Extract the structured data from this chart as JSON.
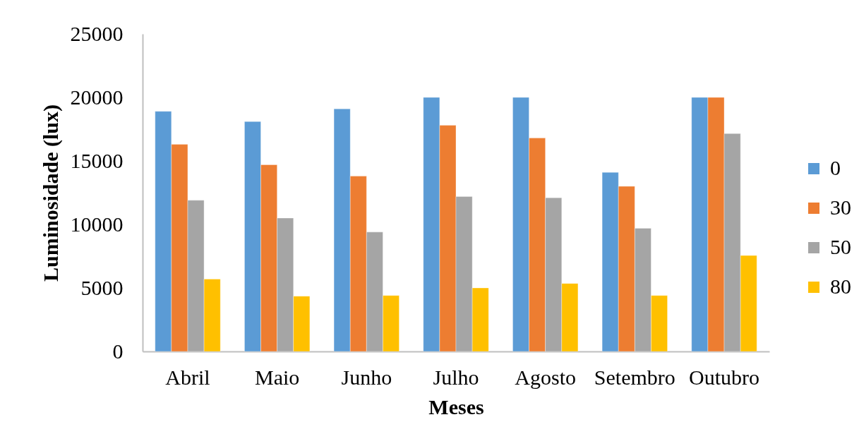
{
  "chart_data": {
    "type": "bar",
    "categories": [
      "Abril",
      "Maio",
      "Junho",
      "Julho",
      "Agosto",
      "Setembro",
      "Outubro"
    ],
    "xlabel": "Meses",
    "ylabel": "Luminosidade (lux)",
    "ylim": [
      0,
      25000
    ],
    "yticks": [
      0,
      5000,
      10000,
      15000,
      20000,
      25000
    ],
    "legend": "right",
    "series": [
      {
        "name": "0",
        "color": "#5b9bd5",
        "values": [
          18900,
          18100,
          19100,
          20000,
          20000,
          14100,
          20000
        ]
      },
      {
        "name": "30",
        "color": "#ed7d31",
        "values": [
          16300,
          14700,
          13800,
          17800,
          16800,
          13000,
          20000
        ]
      },
      {
        "name": "50",
        "color": "#a5a5a5",
        "values": [
          11900,
          10500,
          9400,
          12200,
          12100,
          9700,
          17150
        ]
      },
      {
        "name": "80",
        "color": "#ffc000",
        "values": [
          5700,
          4350,
          4400,
          5000,
          5350,
          4400,
          7550
        ]
      }
    ]
  }
}
